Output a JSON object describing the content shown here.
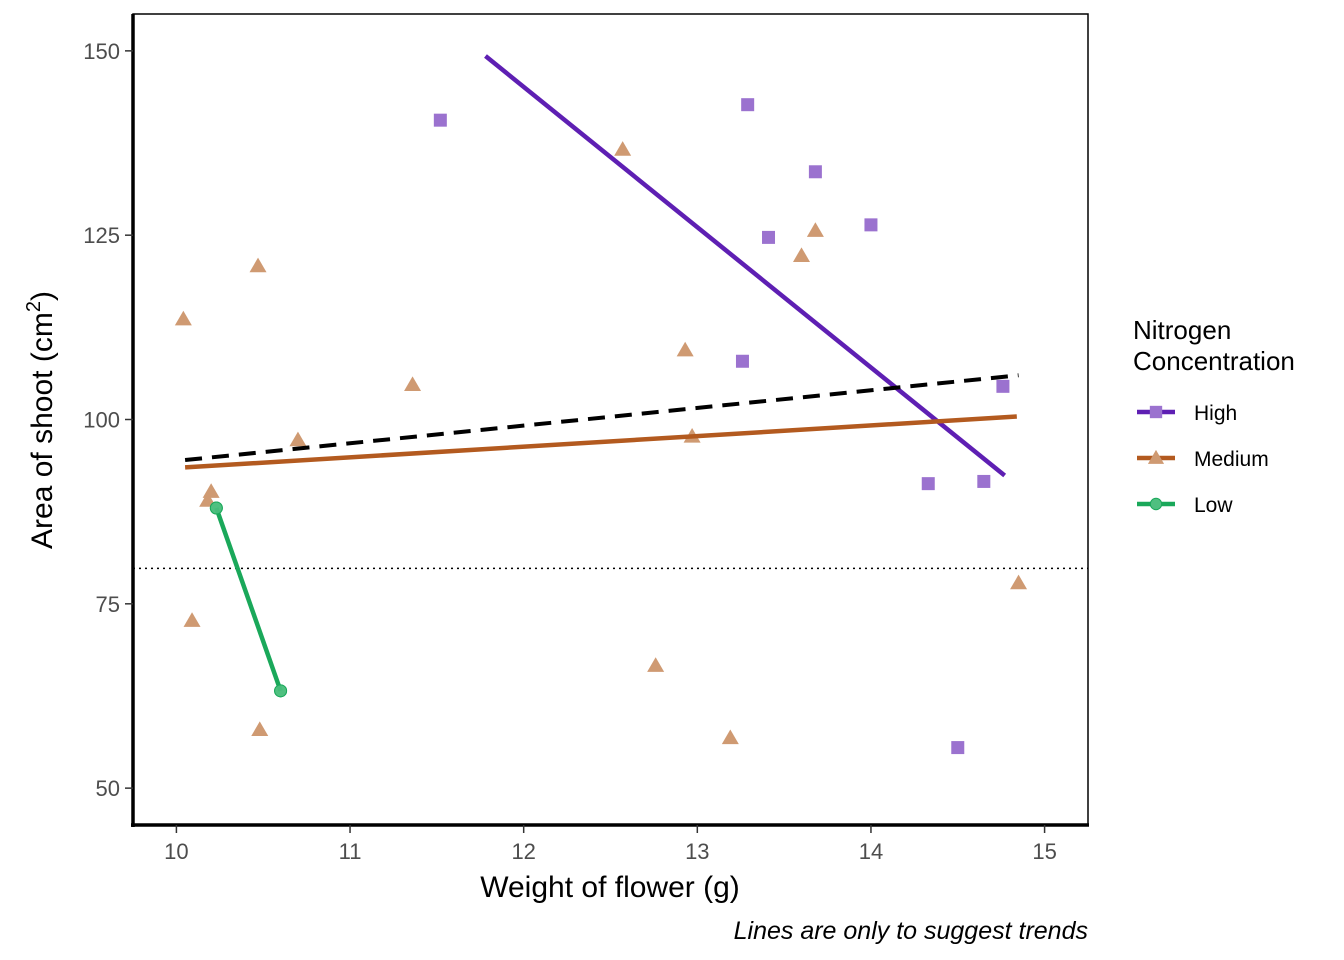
{
  "chart_data": {
    "type": "scatter",
    "xlabel": "Weight of flower (g)",
    "ylabel_main": "Area of shoot",
    "ylabel_unit": "cm",
    "ylabel_exponent": "2",
    "caption": "Lines are only to suggest trends",
    "xlim": [
      9.75,
      15.25
    ],
    "ylim": [
      45,
      155
    ],
    "x_ticks": [
      10,
      11,
      12,
      13,
      14,
      15
    ],
    "y_ticks": [
      50,
      75,
      100,
      125,
      150
    ],
    "grid": false,
    "legend": {
      "title_line1": "Nitrogen",
      "title_line2": "Concentration",
      "position": "right"
    },
    "series": [
      {
        "name": "High",
        "marker": "square",
        "color": "#5e1fb3",
        "point_color": "#9b72cf",
        "points": [
          [
            11.52,
            140.6
          ],
          [
            13.29,
            142.7
          ],
          [
            13.68,
            133.6
          ],
          [
            13.41,
            124.7
          ],
          [
            14.0,
            126.4
          ],
          [
            13.26,
            107.9
          ],
          [
            14.76,
            104.5
          ],
          [
            14.33,
            91.3
          ],
          [
            14.65,
            91.6
          ],
          [
            14.5,
            55.5
          ]
        ],
        "trend": [
          [
            11.78,
            149.3
          ],
          [
            14.77,
            92.4
          ]
        ]
      },
      {
        "name": "Medium",
        "marker": "triangle",
        "color": "#b35a1f",
        "point_color": "#cf9a72",
        "points": [
          [
            10.04,
            113.6
          ],
          [
            10.47,
            120.8
          ],
          [
            10.09,
            72.7
          ],
          [
            10.18,
            89.0
          ],
          [
            10.2,
            90.2
          ],
          [
            10.48,
            57.9
          ],
          [
            10.7,
            97.2
          ],
          [
            11.36,
            104.7
          ],
          [
            12.57,
            136.6
          ],
          [
            12.93,
            109.4
          ],
          [
            12.97,
            97.7
          ],
          [
            12.76,
            66.6
          ],
          [
            13.19,
            56.8
          ],
          [
            13.6,
            122.2
          ],
          [
            13.68,
            125.6
          ],
          [
            14.85,
            77.8
          ]
        ],
        "trend": [
          [
            10.05,
            93.5
          ],
          [
            14.84,
            100.4
          ]
        ]
      },
      {
        "name": "Low",
        "marker": "circle",
        "color": "#1aa85a",
        "point_color": "#4fbf80",
        "points": [
          [
            10.23,
            88.0
          ],
          [
            10.6,
            63.2
          ]
        ],
        "trend": [
          [
            10.23,
            88.0
          ],
          [
            10.6,
            63.2
          ]
        ]
      }
    ],
    "overall_trend": {
      "style": "dashed",
      "color": "#000000",
      "line": [
        [
          10.05,
          94.5
        ],
        [
          14.85,
          106.0
        ]
      ]
    },
    "reference_line": {
      "style": "dotted",
      "y": 79.8
    }
  }
}
